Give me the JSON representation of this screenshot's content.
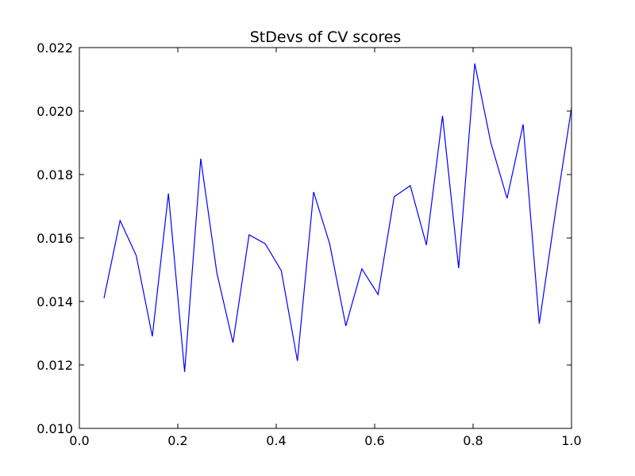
{
  "chart_data": {
    "type": "line",
    "title": "StDevs of CV scores",
    "xlabel": "",
    "ylabel": "",
    "xlim": [
      0.0,
      1.0
    ],
    "ylim": [
      0.01,
      0.022
    ],
    "x_ticks": [
      "0.0",
      "0.2",
      "0.4",
      "0.6",
      "0.8",
      "1.0"
    ],
    "y_ticks": [
      "0.010",
      "0.012",
      "0.014",
      "0.016",
      "0.018",
      "0.020",
      "0.022"
    ],
    "grid": false,
    "legend": false,
    "series": [
      {
        "color": "#0000ff",
        "x": [
          0.05,
          0.0828,
          0.1155,
          0.1483,
          0.181,
          0.2138,
          0.2466,
          0.2793,
          0.3121,
          0.3448,
          0.3776,
          0.4103,
          0.4431,
          0.4759,
          0.5086,
          0.5414,
          0.5741,
          0.6069,
          0.6397,
          0.6724,
          0.7052,
          0.7379,
          0.7707,
          0.8034,
          0.8362,
          0.869,
          0.9017,
          0.9345,
          0.9672,
          1.0
        ],
        "y": [
          0.0141,
          0.01655,
          0.01545,
          0.0129,
          0.0174,
          0.01178,
          0.0185,
          0.0149,
          0.0127,
          0.0161,
          0.01582,
          0.01497,
          0.01213,
          0.01745,
          0.01582,
          0.01323,
          0.01503,
          0.01422,
          0.0173,
          0.01765,
          0.01578,
          0.01985,
          0.01505,
          0.0215,
          0.019,
          0.01725,
          0.01958,
          0.0133,
          0.0168,
          0.0201
        ]
      }
    ]
  }
}
